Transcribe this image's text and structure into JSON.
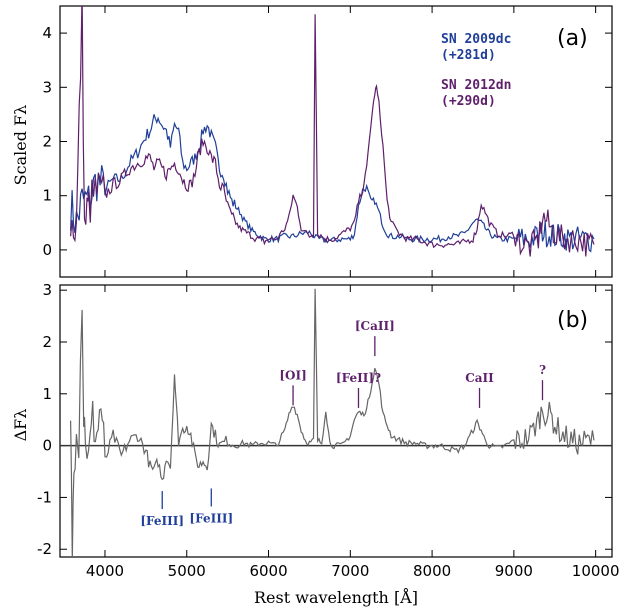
{
  "chart_data": [
    {
      "type": "line",
      "panel_label": "(a)",
      "ylabel": "Scaled Fλ",
      "xlim": [
        3450,
        10200
      ],
      "ylim": [
        -0.5,
        4.5
      ],
      "yticks": [
        0,
        1,
        2,
        3,
        4
      ],
      "grid": false,
      "legend_position": "top-right",
      "series": [
        {
          "name": "SN 2009dc\n(+281d)",
          "label_lines": [
            "SN 2009dc",
            "(+281d)"
          ],
          "color": "#1f3f99",
          "x": [
            3580,
            3650,
            3720,
            3800,
            3900,
            4000,
            4100,
            4200,
            4300,
            4400,
            4500,
            4550,
            4600,
            4650,
            4700,
            4750,
            4800,
            4850,
            4900,
            4950,
            5000,
            5050,
            5100,
            5150,
            5200,
            5250,
            5300,
            5350,
            5400,
            5450,
            5500,
            5550,
            5600,
            5650,
            5700,
            5750,
            5800,
            5850,
            5900,
            5950,
            6000,
            6100,
            6200,
            6300,
            6400,
            6500,
            6600,
            6700,
            6800,
            6900,
            7000,
            7050,
            7100,
            7150,
            7200,
            7250,
            7300,
            7350,
            7400,
            7450,
            7500,
            7600,
            7700,
            7800,
            7900,
            8000,
            8100,
            8200,
            8300,
            8400,
            8500,
            8550,
            8600,
            8650,
            8700,
            8750,
            8800,
            8900,
            9000,
            9100,
            9200,
            9300,
            9350,
            9400,
            9450,
            9500,
            9600,
            9700,
            9800,
            9900,
            9980
          ],
          "y": [
            0.8,
            0.5,
            0.9,
            0.9,
            1.3,
            1.1,
            1.3,
            1.3,
            1.6,
            1.8,
            2.1,
            2.2,
            2.4,
            2.45,
            2.3,
            2.2,
            1.9,
            2.3,
            2.2,
            1.6,
            1.5,
            1.6,
            1.7,
            1.9,
            2.2,
            2.3,
            2.1,
            1.9,
            1.5,
            1.4,
            1.1,
            0.9,
            0.8,
            0.7,
            0.55,
            0.45,
            0.35,
            0.3,
            0.25,
            0.2,
            0.2,
            0.2,
            0.25,
            0.25,
            0.3,
            0.32,
            0.2,
            0.18,
            0.18,
            0.2,
            0.2,
            0.3,
            0.8,
            1.1,
            1.15,
            0.9,
            0.9,
            0.7,
            0.45,
            0.3,
            0.25,
            0.25,
            0.2,
            0.2,
            0.2,
            0.2,
            0.2,
            0.25,
            0.25,
            0.3,
            0.5,
            0.55,
            0.5,
            0.4,
            0.3,
            0.25,
            0.2,
            0.2,
            0.2,
            0.2,
            0.2,
            0.25,
            0.35,
            0.3,
            0.3,
            0.25,
            0.25,
            0.2,
            0.2,
            0.2,
            0.2
          ]
        },
        {
          "name": "SN 2012dn\n(+290d)",
          "label_lines": [
            "SN 2012dn",
            "(+290d)"
          ],
          "color": "#5e1f6b",
          "x": [
            3580,
            3650,
            3720,
            3750,
            3780,
            3800,
            3900,
            4000,
            4100,
            4200,
            4300,
            4400,
            4500,
            4550,
            4600,
            4650,
            4700,
            4750,
            4800,
            4850,
            4900,
            4950,
            5000,
            5050,
            5100,
            5150,
            5200,
            5250,
            5300,
            5350,
            5400,
            5450,
            5500,
            5550,
            5600,
            5650,
            5700,
            5750,
            5800,
            5850,
            5900,
            5950,
            6000,
            6100,
            6200,
            6250,
            6300,
            6350,
            6400,
            6500,
            6550,
            6570,
            6600,
            6700,
            6800,
            6900,
            7000,
            7050,
            7100,
            7150,
            7200,
            7250,
            7300,
            7320,
            7350,
            7400,
            7450,
            7500,
            7600,
            7700,
            7800,
            7900,
            8000,
            8100,
            8200,
            8300,
            8400,
            8500,
            8550,
            8600,
            8650,
            8700,
            8800,
            8900,
            9000,
            9100,
            9200,
            9300,
            9350,
            9400,
            9450,
            9500,
            9600,
            9700,
            9800,
            9900,
            9980
          ],
          "y": [
            0.5,
            0.4,
            4.4,
            0.4,
            0.7,
            0.8,
            1.1,
            1.0,
            1.2,
            1.3,
            1.5,
            1.6,
            1.7,
            1.7,
            1.5,
            1.6,
            1.5,
            1.4,
            1.5,
            1.6,
            1.5,
            1.3,
            1.2,
            1.2,
            1.4,
            1.8,
            2.0,
            1.9,
            1.7,
            1.6,
            1.2,
            1.1,
            0.8,
            0.6,
            0.5,
            0.4,
            0.35,
            0.3,
            0.25,
            0.2,
            0.2,
            0.15,
            0.2,
            0.2,
            0.4,
            0.6,
            1.0,
            0.8,
            0.4,
            0.25,
            0.3,
            4.4,
            0.3,
            0.2,
            0.2,
            0.3,
            0.4,
            0.5,
            0.9,
            1.1,
            1.5,
            2.3,
            2.9,
            3.0,
            2.7,
            1.9,
            0.9,
            0.5,
            0.3,
            0.2,
            0.2,
            0.15,
            0.1,
            0.1,
            0.1,
            0.1,
            0.15,
            0.2,
            0.4,
            0.85,
            0.7,
            0.5,
            0.3,
            0.25,
            0.3,
            0.1,
            0.05,
            0.2,
            0.6,
            0.55,
            0.4,
            0.3,
            0.2,
            0.2,
            0.2,
            0.1,
            0.1
          ]
        }
      ]
    },
    {
      "type": "line",
      "panel_label": "(b)",
      "ylabel": "ΔFλ",
      "xlabel": "Rest wavelength [Å]",
      "xlim": [
        3450,
        10200
      ],
      "xticks": [
        4000,
        5000,
        6000,
        7000,
        8000,
        9000,
        10000
      ],
      "ylim": [
        -2.15,
        3.1
      ],
      "yticks": [
        -2,
        -1,
        0,
        1,
        2,
        3
      ],
      "grid": false,
      "zero_line": true,
      "series": [
        {
          "name": "",
          "color": "#666666",
          "x": [
            3580,
            3600,
            3620,
            3650,
            3680,
            3720,
            3740,
            3760,
            3800,
            3850,
            3900,
            3950,
            4000,
            4100,
            4200,
            4300,
            4400,
            4500,
            4550,
            4600,
            4650,
            4700,
            4750,
            4800,
            4850,
            4870,
            4900,
            4950,
            5000,
            5050,
            5100,
            5150,
            5200,
            5250,
            5300,
            5350,
            5400,
            5500,
            5600,
            5700,
            5800,
            5900,
            6000,
            6100,
            6200,
            6250,
            6300,
            6350,
            6400,
            6450,
            6500,
            6550,
            6570,
            6600,
            6650,
            6700,
            6750,
            6800,
            6900,
            7000,
            7050,
            7100,
            7150,
            7200,
            7250,
            7300,
            7350,
            7400,
            7450,
            7500,
            7600,
            7700,
            7800,
            7900,
            8000,
            8100,
            8200,
            8300,
            8400,
            8500,
            8550,
            8600,
            8650,
            8700,
            8800,
            8900,
            9000,
            9100,
            9200,
            9300,
            9350,
            9400,
            9450,
            9500,
            9600,
            9700,
            9800,
            9900,
            9980
          ],
          "y": [
            0.3,
            -2.0,
            -0.5,
            0.6,
            0.2,
            3.0,
            0.5,
            0.3,
            -0.3,
            0.5,
            0.2,
            0.8,
            -0.3,
            0.2,
            -0.2,
            0.1,
            0.2,
            -0.1,
            -0.4,
            -0.5,
            -0.3,
            -0.7,
            -0.2,
            -0.4,
            1.4,
            0.8,
            0.1,
            0.3,
            0.4,
            0.2,
            -0.2,
            -0.4,
            -0.3,
            -0.4,
            0.4,
            0.2,
            0.0,
            0.1,
            0.0,
            0.05,
            0.0,
            0.05,
            0.05,
            0.0,
            0.3,
            0.6,
            0.8,
            0.6,
            0.3,
            0.1,
            0.05,
            0.1,
            3.0,
            0.1,
            0.05,
            0.7,
            0.05,
            0.0,
            0.0,
            0.2,
            0.5,
            0.65,
            0.6,
            0.7,
            1.1,
            1.5,
            1.2,
            0.6,
            0.4,
            0.2,
            0.1,
            0.05,
            0.05,
            0.0,
            0.0,
            0.0,
            -0.05,
            -0.1,
            0.0,
            0.3,
            0.45,
            0.3,
            0.1,
            0.0,
            -0.05,
            0.0,
            0.1,
            0.1,
            0.2,
            0.5,
            0.7,
            0.6,
            0.6,
            0.4,
            0.2,
            0.1,
            0.05,
            0.1,
            0.1
          ]
        }
      ],
      "annotations": [
        {
          "text": "[FeIII]",
          "x": 4700,
          "y_tip": -0.8,
          "color": "#1f3f99",
          "position": "below"
        },
        {
          "text": "[FeIII]",
          "x": 5300,
          "y_tip": -0.75,
          "color": "#1f3f99",
          "position": "below"
        },
        {
          "text": "[OI]",
          "x": 6300,
          "y_tip": 0.7,
          "color": "#5e1f6b",
          "position": "above"
        },
        {
          "text": "[FeII]?",
          "x": 7100,
          "y_tip": 0.65,
          "color": "#5e1f6b",
          "position": "above"
        },
        {
          "text": "[CaII]",
          "x": 7300,
          "y_tip": 1.65,
          "color": "#5e1f6b",
          "position": "above"
        },
        {
          "text": "CaII",
          "x": 8580,
          "y_tip": 0.65,
          "color": "#5e1f6b",
          "position": "above"
        },
        {
          "text": "?",
          "x": 9350,
          "y_tip": 0.8,
          "color": "#5e1f6b",
          "position": "above"
        }
      ]
    }
  ]
}
